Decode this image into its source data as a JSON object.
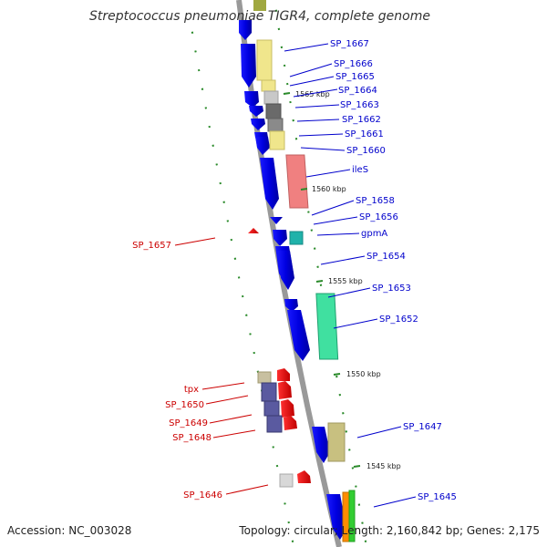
{
  "title": "Streptococcus pneumoniae TIGR4, complete genome",
  "accession": "Accession: NC_003028",
  "topology": "Topology: circular; Length: 2,160,842 bp; Genes: 2,175",
  "colors": {
    "forward_label": "#0000cc",
    "reverse_label": "#cc0000",
    "forward_gene": "#0000ee",
    "reverse_gene": "#ee0000",
    "backbone": "#888888",
    "tick": "#2a8a2a"
  },
  "kbp_labels": [
    "1565 kbp",
    "1560 kbp",
    "1555 kbp",
    "1550 kbp",
    "1545 kbp"
  ],
  "forward_labels": [
    "SP_1667",
    "SP_1666",
    "SP_1665",
    "SP_1664",
    "SP_1663",
    "SP_1662",
    "SP_1661",
    "SP_1660",
    "ileS",
    "SP_1658",
    "SP_1656",
    "gpmA",
    "SP_1654",
    "SP_1653",
    "SP_1652",
    "SP_1647",
    "SP_1645"
  ],
  "reverse_labels": [
    "SP_1657",
    "tpx",
    "SP_1650",
    "SP_1649",
    "SP_1648",
    "SP_1646"
  ],
  "category_colors": [
    "#f0e68c",
    "#c0c0c0",
    "#707070",
    "#8a8a8a",
    "#f08080",
    "#20b2aa",
    "#40e0a0",
    "#c8c080",
    "#5a5aa0",
    "#c8c0a0",
    "#ff8c00",
    "#32cd32",
    "#bfbf60"
  ]
}
